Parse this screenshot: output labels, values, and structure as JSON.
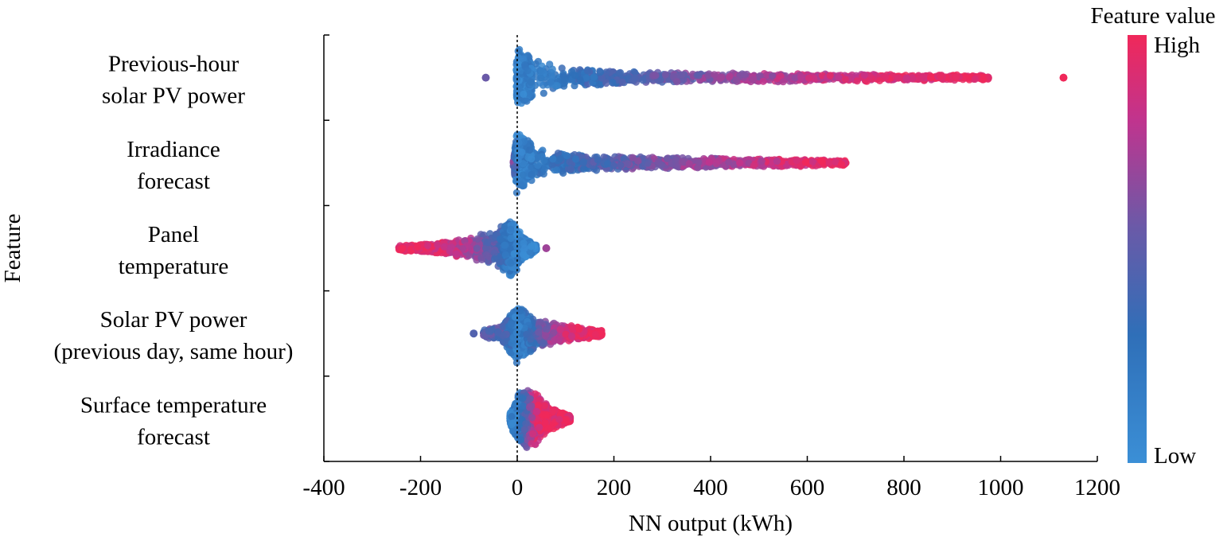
{
  "chart_data": {
    "type": "scatter",
    "subtype": "beeswarm",
    "xlabel": "NN output (kWh)",
    "ylabel": "Feature",
    "xlim": [
      -400,
      1200
    ],
    "xticks": [
      -400,
      -200,
      0,
      200,
      400,
      600,
      800,
      1000,
      1200
    ],
    "grid": false,
    "zero_line": "dotted",
    "colorbar": {
      "title": "Feature value",
      "high_label": "High",
      "low_label": "Low",
      "colors": [
        "#3b8fd6",
        "#2f6fb8",
        "#6a5aa8",
        "#c0348e",
        "#f0285a"
      ]
    },
    "features": [
      {
        "lines": [
          "Previous-hour",
          "solar PV power"
        ],
        "range": [
          -65,
          1130
        ],
        "body": [
          {
            "x": -2,
            "h": 0.36,
            "t": 0.12
          },
          {
            "x": 30,
            "h": 0.24,
            "t": 0.16
          },
          {
            "x": 100,
            "h": 0.12,
            "t": 0.25
          },
          {
            "x": 250,
            "h": 0.08,
            "t": 0.45
          },
          {
            "x": 400,
            "h": 0.06,
            "t": 0.62
          },
          {
            "x": 600,
            "h": 0.05,
            "t": 0.8
          },
          {
            "x": 800,
            "h": 0.04,
            "t": 0.92
          },
          {
            "x": 975,
            "h": 0.03,
            "t": 1.0
          }
        ],
        "outliers": [
          {
            "x": -65,
            "t": 0.55
          },
          {
            "x": 1130,
            "t": 1.0
          }
        ]
      },
      {
        "lines": [
          "Irradiance",
          "forecast"
        ],
        "range": [
          -15,
          680
        ],
        "body": [
          {
            "x": -8,
            "h": 0.05,
            "t": 0.6
          },
          {
            "x": -1,
            "h": 0.36,
            "t": 0.12
          },
          {
            "x": 30,
            "h": 0.24,
            "t": 0.18
          },
          {
            "x": 100,
            "h": 0.11,
            "t": 0.32
          },
          {
            "x": 250,
            "h": 0.08,
            "t": 0.55
          },
          {
            "x": 400,
            "h": 0.06,
            "t": 0.7
          },
          {
            "x": 550,
            "h": 0.05,
            "t": 0.88
          },
          {
            "x": 680,
            "h": 0.03,
            "t": 1.0
          }
        ],
        "outliers": []
      },
      {
        "lines": [
          "Panel",
          "temperature"
        ],
        "range": [
          -245,
          60
        ],
        "body": [
          {
            "x": -245,
            "h": 0.03,
            "t": 1.0
          },
          {
            "x": -180,
            "h": 0.06,
            "t": 0.95
          },
          {
            "x": -100,
            "h": 0.12,
            "t": 0.75
          },
          {
            "x": -40,
            "h": 0.24,
            "t": 0.4
          },
          {
            "x": -10,
            "h": 0.36,
            "t": 0.15
          },
          {
            "x": 10,
            "h": 0.14,
            "t": 0.1
          },
          {
            "x": 40,
            "h": 0.04,
            "t": 0.12
          }
        ],
        "outliers": [
          {
            "x": 60,
            "t": 0.7
          }
        ]
      },
      {
        "lines": [
          "Solar PV power",
          "(previous day, same hour)"
        ],
        "range": [
          -90,
          175
        ],
        "body": [
          {
            "x": -70,
            "h": 0.04,
            "t": 0.5
          },
          {
            "x": -30,
            "h": 0.1,
            "t": 0.45
          },
          {
            "x": 0,
            "h": 0.36,
            "t": 0.12
          },
          {
            "x": 30,
            "h": 0.2,
            "t": 0.3
          },
          {
            "x": 80,
            "h": 0.12,
            "t": 0.8
          },
          {
            "x": 130,
            "h": 0.08,
            "t": 0.95
          },
          {
            "x": 175,
            "h": 0.04,
            "t": 1.0
          }
        ],
        "outliers": [
          {
            "x": -90,
            "t": 0.45
          }
        ]
      },
      {
        "lines": [
          "Surface temperature",
          "forecast"
        ],
        "range": [
          -15,
          110
        ],
        "body": [
          {
            "x": -15,
            "h": 0.06,
            "t": 0.15
          },
          {
            "x": 0,
            "h": 0.3,
            "t": 0.2
          },
          {
            "x": 20,
            "h": 0.34,
            "t": 0.5
          },
          {
            "x": 35,
            "h": 0.36,
            "t": 0.85
          },
          {
            "x": 55,
            "h": 0.2,
            "t": 0.95
          },
          {
            "x": 85,
            "h": 0.1,
            "t": 1.0
          },
          {
            "x": 110,
            "h": 0.04,
            "t": 1.0
          }
        ],
        "outliers": []
      }
    ]
  }
}
